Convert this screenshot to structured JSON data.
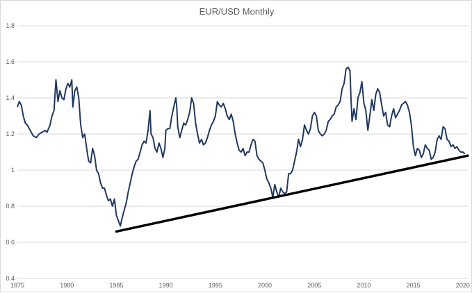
{
  "chart_data": {
    "type": "line",
    "title": "EUR/USD Monthly",
    "xlabel": "",
    "ylabel": "",
    "xlim": [
      1975,
      2020.5
    ],
    "ylim": [
      0.4,
      1.8
    ],
    "grid": true,
    "legend": "none",
    "x_ticks": [
      "1975",
      "1980",
      "1985",
      "1990",
      "1995",
      "2000",
      "2005",
      "2010",
      "2015",
      "2020"
    ],
    "y_ticks": [
      "0.4",
      "0.6",
      "0.8",
      "1",
      "1.2",
      "1.4",
      "1.6",
      "1.8"
    ],
    "series": [
      {
        "color": "#1f3864",
        "points": [
          [
            1975.0,
            1.35
          ],
          [
            1975.2,
            1.38
          ],
          [
            1975.4,
            1.36
          ],
          [
            1975.6,
            1.3
          ],
          [
            1975.8,
            1.26
          ],
          [
            1976.0,
            1.25
          ],
          [
            1976.3,
            1.22
          ],
          [
            1976.6,
            1.19
          ],
          [
            1976.9,
            1.18
          ],
          [
            1977.2,
            1.2
          ],
          [
            1977.5,
            1.21
          ],
          [
            1977.8,
            1.22
          ],
          [
            1978.0,
            1.21
          ],
          [
            1978.3,
            1.25
          ],
          [
            1978.5,
            1.3
          ],
          [
            1978.7,
            1.33
          ],
          [
            1978.9,
            1.5
          ],
          [
            1979.1,
            1.38
          ],
          [
            1979.3,
            1.44
          ],
          [
            1979.5,
            1.4
          ],
          [
            1979.7,
            1.39
          ],
          [
            1979.9,
            1.45
          ],
          [
            1980.1,
            1.48
          ],
          [
            1980.3,
            1.46
          ],
          [
            1980.5,
            1.5
          ],
          [
            1980.6,
            1.35
          ],
          [
            1980.8,
            1.44
          ],
          [
            1981.0,
            1.46
          ],
          [
            1981.2,
            1.4
          ],
          [
            1981.4,
            1.25
          ],
          [
            1981.6,
            1.18
          ],
          [
            1981.8,
            1.2
          ],
          [
            1982.0,
            1.12
          ],
          [
            1982.2,
            1.05
          ],
          [
            1982.4,
            1.04
          ],
          [
            1982.6,
            1.12
          ],
          [
            1982.8,
            1.08
          ],
          [
            1983.0,
            1.0
          ],
          [
            1983.2,
            0.98
          ],
          [
            1983.4,
            0.93
          ],
          [
            1983.6,
            0.9
          ],
          [
            1983.8,
            0.9
          ],
          [
            1984.0,
            0.86
          ],
          [
            1984.2,
            0.83
          ],
          [
            1984.4,
            0.84
          ],
          [
            1984.6,
            0.8
          ],
          [
            1984.8,
            0.84
          ],
          [
            1985.0,
            0.75
          ],
          [
            1985.2,
            0.72
          ],
          [
            1985.4,
            0.69
          ],
          [
            1985.6,
            0.74
          ],
          [
            1985.8,
            0.78
          ],
          [
            1986.0,
            0.82
          ],
          [
            1986.2,
            0.88
          ],
          [
            1986.4,
            0.93
          ],
          [
            1986.6,
            0.98
          ],
          [
            1986.8,
            1.02
          ],
          [
            1987.0,
            1.05
          ],
          [
            1987.2,
            1.06
          ],
          [
            1987.4,
            1.1
          ],
          [
            1987.6,
            1.14
          ],
          [
            1987.8,
            1.16
          ],
          [
            1988.0,
            1.15
          ],
          [
            1988.2,
            1.22
          ],
          [
            1988.4,
            1.33
          ],
          [
            1988.5,
            1.2
          ],
          [
            1988.7,
            1.18
          ],
          [
            1988.9,
            1.12
          ],
          [
            1989.1,
            1.1
          ],
          [
            1989.3,
            1.15
          ],
          [
            1989.5,
            1.12
          ],
          [
            1989.7,
            1.07
          ],
          [
            1989.9,
            1.12
          ],
          [
            1990.0,
            1.22
          ],
          [
            1990.2,
            1.23
          ],
          [
            1990.4,
            1.23
          ],
          [
            1990.6,
            1.3
          ],
          [
            1990.8,
            1.35
          ],
          [
            1991.0,
            1.4
          ],
          [
            1991.1,
            1.35
          ],
          [
            1991.2,
            1.24
          ],
          [
            1991.4,
            1.18
          ],
          [
            1991.6,
            1.22
          ],
          [
            1991.8,
            1.26
          ],
          [
            1992.0,
            1.25
          ],
          [
            1992.2,
            1.28
          ],
          [
            1992.4,
            1.32
          ],
          [
            1992.6,
            1.4
          ],
          [
            1992.8,
            1.37
          ],
          [
            1993.0,
            1.26
          ],
          [
            1993.2,
            1.2
          ],
          [
            1993.4,
            1.15
          ],
          [
            1993.6,
            1.17
          ],
          [
            1993.8,
            1.14
          ],
          [
            1994.0,
            1.15
          ],
          [
            1994.2,
            1.18
          ],
          [
            1994.4,
            1.22
          ],
          [
            1994.6,
            1.25
          ],
          [
            1994.8,
            1.27
          ],
          [
            1995.0,
            1.3
          ],
          [
            1995.2,
            1.38
          ],
          [
            1995.4,
            1.36
          ],
          [
            1995.6,
            1.35
          ],
          [
            1995.8,
            1.37
          ],
          [
            1996.0,
            1.34
          ],
          [
            1996.2,
            1.3
          ],
          [
            1996.4,
            1.28
          ],
          [
            1996.6,
            1.31
          ],
          [
            1996.8,
            1.27
          ],
          [
            1997.0,
            1.2
          ],
          [
            1997.2,
            1.15
          ],
          [
            1997.4,
            1.11
          ],
          [
            1997.6,
            1.1
          ],
          [
            1997.8,
            1.12
          ],
          [
            1998.0,
            1.08
          ],
          [
            1998.2,
            1.1
          ],
          [
            1998.4,
            1.1
          ],
          [
            1998.6,
            1.14
          ],
          [
            1998.8,
            1.17
          ],
          [
            1999.0,
            1.16
          ],
          [
            1999.2,
            1.08
          ],
          [
            1999.4,
            1.06
          ],
          [
            1999.6,
            1.05
          ],
          [
            1999.8,
            1.04
          ],
          [
            2000.0,
            1.0
          ],
          [
            2000.2,
            0.95
          ],
          [
            2000.4,
            0.93
          ],
          [
            2000.6,
            0.9
          ],
          [
            2000.8,
            0.85
          ],
          [
            2001.0,
            0.92
          ],
          [
            2001.2,
            0.88
          ],
          [
            2001.4,
            0.85
          ],
          [
            2001.6,
            0.9
          ],
          [
            2001.8,
            0.88
          ],
          [
            2002.0,
            0.87
          ],
          [
            2002.2,
            0.88
          ],
          [
            2002.4,
            0.98
          ],
          [
            2002.6,
            0.98
          ],
          [
            2002.8,
            1.0
          ],
          [
            2003.0,
            1.05
          ],
          [
            2003.2,
            1.1
          ],
          [
            2003.4,
            1.17
          ],
          [
            2003.6,
            1.13
          ],
          [
            2003.8,
            1.17
          ],
          [
            2004.0,
            1.25
          ],
          [
            2004.2,
            1.22
          ],
          [
            2004.4,
            1.2
          ],
          [
            2004.6,
            1.23
          ],
          [
            2004.8,
            1.3
          ],
          [
            2005.0,
            1.32
          ],
          [
            2005.2,
            1.3
          ],
          [
            2005.4,
            1.22
          ],
          [
            2005.6,
            1.2
          ],
          [
            2005.8,
            1.19
          ],
          [
            2006.0,
            1.2
          ],
          [
            2006.2,
            1.22
          ],
          [
            2006.4,
            1.27
          ],
          [
            2006.6,
            1.28
          ],
          [
            2006.8,
            1.3
          ],
          [
            2007.0,
            1.31
          ],
          [
            2007.2,
            1.35
          ],
          [
            2007.4,
            1.36
          ],
          [
            2007.6,
            1.38
          ],
          [
            2007.8,
            1.45
          ],
          [
            2008.0,
            1.48
          ],
          [
            2008.2,
            1.56
          ],
          [
            2008.4,
            1.57
          ],
          [
            2008.6,
            1.55
          ],
          [
            2008.7,
            1.4
          ],
          [
            2008.8,
            1.27
          ],
          [
            2009.0,
            1.34
          ],
          [
            2009.2,
            1.28
          ],
          [
            2009.4,
            1.4
          ],
          [
            2009.6,
            1.43
          ],
          [
            2009.8,
            1.49
          ],
          [
            2010.0,
            1.37
          ],
          [
            2010.2,
            1.33
          ],
          [
            2010.4,
            1.22
          ],
          [
            2010.6,
            1.3
          ],
          [
            2010.8,
            1.39
          ],
          [
            2011.0,
            1.33
          ],
          [
            2011.2,
            1.42
          ],
          [
            2011.4,
            1.45
          ],
          [
            2011.6,
            1.43
          ],
          [
            2011.8,
            1.36
          ],
          [
            2012.0,
            1.3
          ],
          [
            2012.2,
            1.32
          ],
          [
            2012.4,
            1.25
          ],
          [
            2012.6,
            1.24
          ],
          [
            2012.8,
            1.3
          ],
          [
            2013.0,
            1.34
          ],
          [
            2013.2,
            1.29
          ],
          [
            2013.4,
            1.31
          ],
          [
            2013.6,
            1.33
          ],
          [
            2013.8,
            1.36
          ],
          [
            2014.0,
            1.37
          ],
          [
            2014.2,
            1.38
          ],
          [
            2014.4,
            1.36
          ],
          [
            2014.6,
            1.32
          ],
          [
            2014.8,
            1.25
          ],
          [
            2015.0,
            1.13
          ],
          [
            2015.2,
            1.08
          ],
          [
            2015.4,
            1.12
          ],
          [
            2015.6,
            1.11
          ],
          [
            2015.8,
            1.07
          ],
          [
            2016.0,
            1.09
          ],
          [
            2016.2,
            1.14
          ],
          [
            2016.4,
            1.12
          ],
          [
            2016.6,
            1.11
          ],
          [
            2016.8,
            1.06
          ],
          [
            2017.0,
            1.07
          ],
          [
            2017.2,
            1.1
          ],
          [
            2017.4,
            1.17
          ],
          [
            2017.6,
            1.19
          ],
          [
            2017.8,
            1.17
          ],
          [
            2018.0,
            1.24
          ],
          [
            2018.2,
            1.23
          ],
          [
            2018.4,
            1.17
          ],
          [
            2018.6,
            1.16
          ],
          [
            2018.8,
            1.13
          ],
          [
            2019.0,
            1.14
          ],
          [
            2019.2,
            1.12
          ],
          [
            2019.4,
            1.13
          ],
          [
            2019.6,
            1.11
          ],
          [
            2019.8,
            1.1
          ],
          [
            2020.0,
            1.1
          ],
          [
            2020.2,
            1.09
          ]
        ]
      }
    ],
    "trendline": {
      "color": "#000000",
      "points": [
        [
          1985.0,
          0.66
        ],
        [
          2020.5,
          1.08
        ]
      ]
    }
  }
}
